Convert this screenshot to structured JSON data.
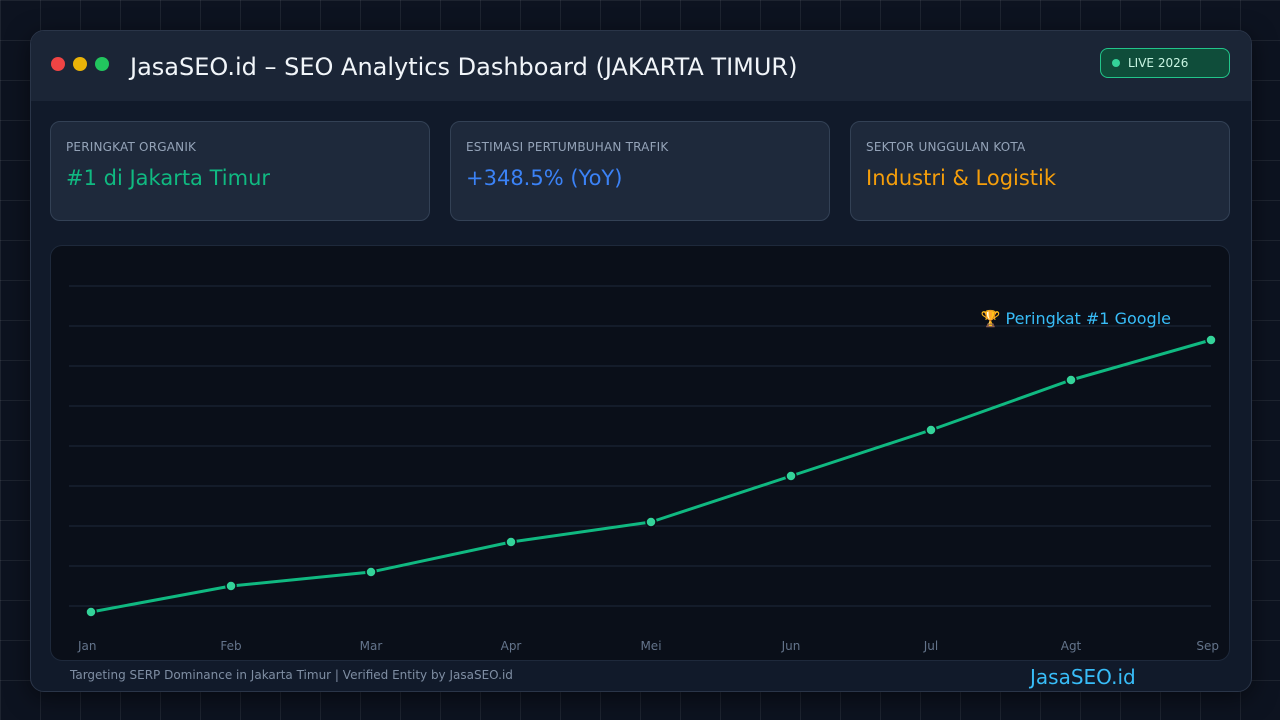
{
  "window": {
    "title": "JasaSEO.id – SEO Analytics Dashboard (JAKARTA TIMUR)",
    "badge": "LIVE 2026"
  },
  "cards": [
    {
      "label": "PERINGKAT ORGANIK",
      "value": "#1 di Jakarta Timur",
      "color": "#10b981"
    },
    {
      "label": "ESTIMASI PERTUMBUHAN TRAFIK",
      "value": "+348.5% (YoY)",
      "color": "#3b82f6"
    },
    {
      "label": "SEKTOR UNGGULAN KOTA",
      "value": "Industri & Logistik",
      "color": "#f59e0b"
    }
  ],
  "chart_data": {
    "type": "line",
    "categories": [
      "Jan",
      "Feb",
      "Mar",
      "Apr",
      "Mei",
      "Jun",
      "Jul",
      "Agt",
      "Sep"
    ],
    "series": [
      {
        "values": [
          8.5,
          15,
          18.5,
          26,
          31,
          42.5,
          54,
          66.5,
          76.5
        ],
        "color": "#10b981"
      }
    ],
    "ylim": [
      0,
      100
    ],
    "grid": true,
    "annotation": "🏆 Peringkat #1 Google",
    "annotation_color": "#38bdf8"
  },
  "footer": {
    "text": "Targeting SERP Dominance in Jakarta Timur | Verified Entity by JasaSEO.id",
    "brand": "JasaSEO.id"
  }
}
